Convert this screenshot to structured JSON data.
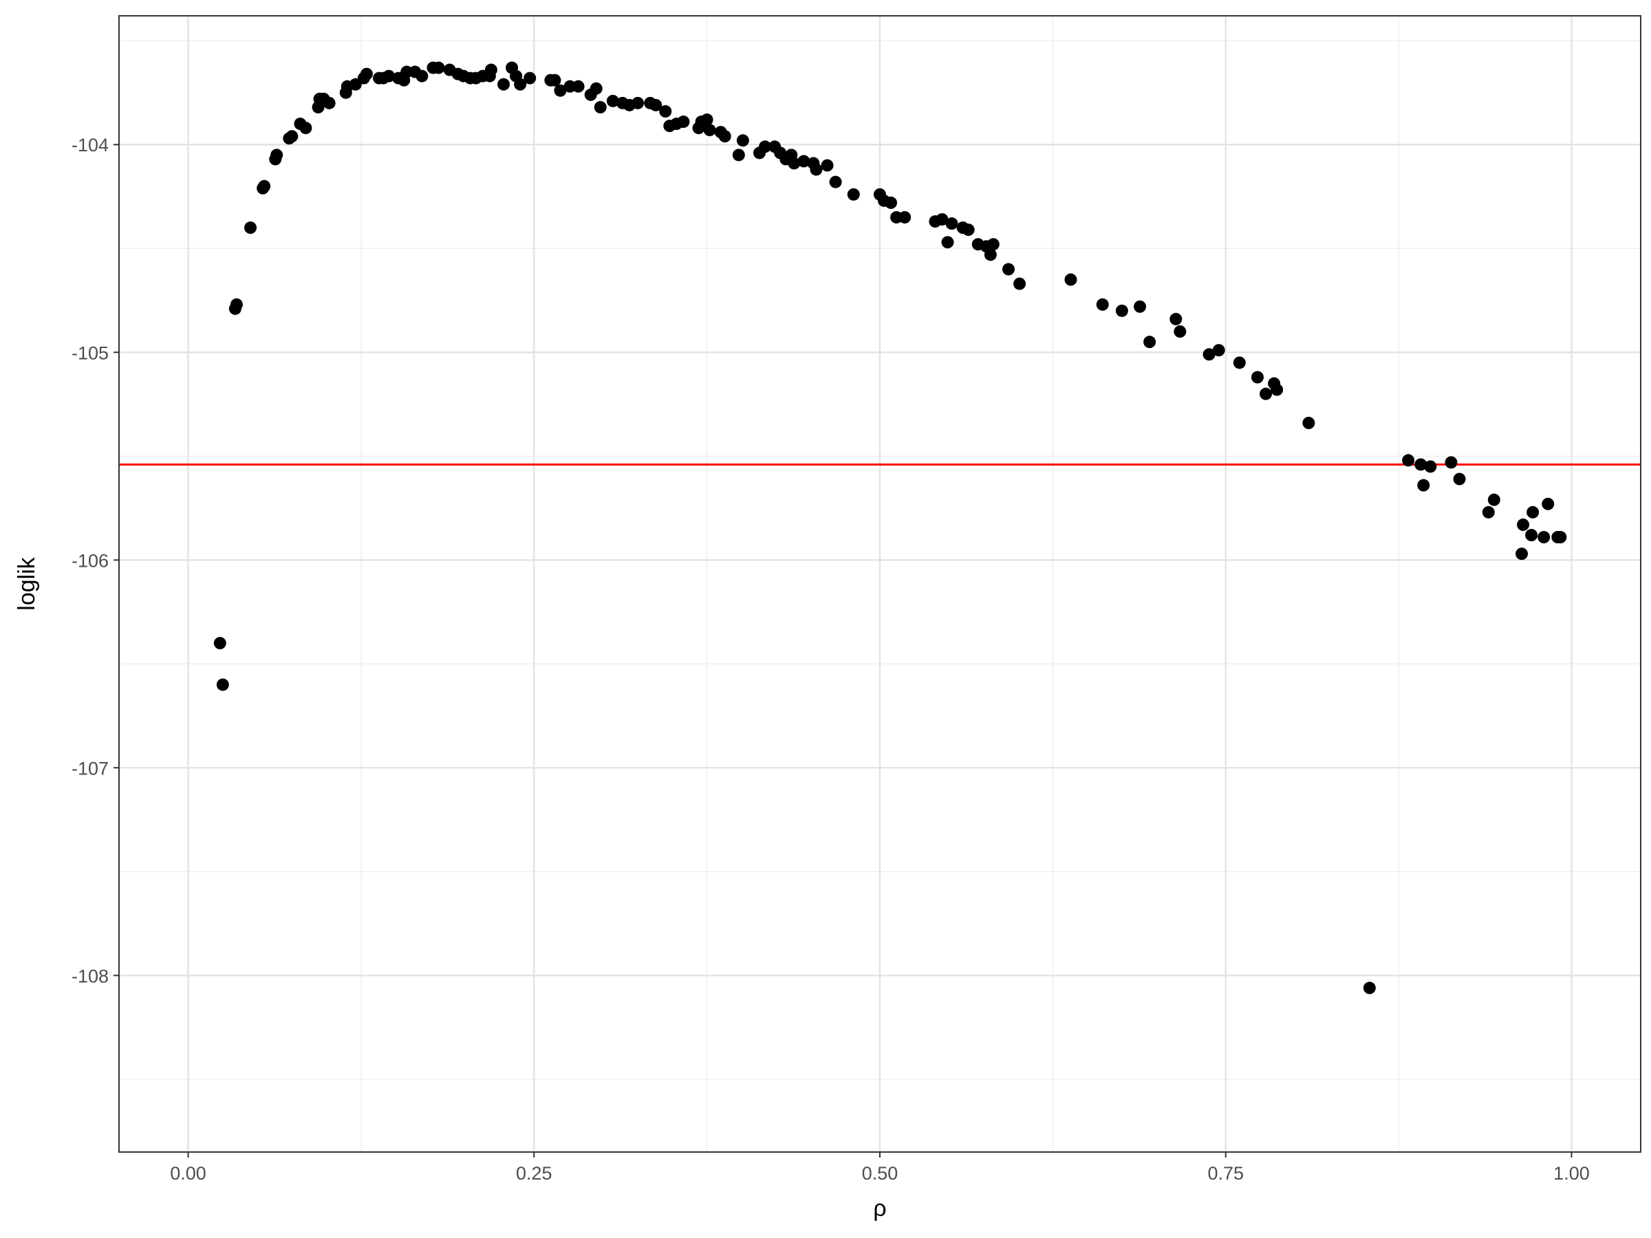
{
  "chart_data": {
    "type": "scatter",
    "title": "",
    "xlabel": "ρ",
    "ylabel": "loglik",
    "xlim": [
      -0.05,
      1.05
    ],
    "ylim": [
      -108.85,
      -103.38
    ],
    "x_ticks": [
      0.0,
      0.25,
      0.5,
      0.75,
      1.0
    ],
    "x_tick_labels": [
      "0.00",
      "0.25",
      "0.50",
      "0.75",
      "1.00"
    ],
    "y_ticks": [
      -104,
      -105,
      -106,
      -107,
      -108
    ],
    "y_tick_labels": [
      "-104",
      "-105",
      "-106",
      "-107",
      "-108"
    ],
    "grid": true,
    "hline": {
      "y": -105.54,
      "color": "#ff0000"
    },
    "point_color": "#000000",
    "series": [
      {
        "points": [
          [
            0.023,
            -106.4
          ],
          [
            0.025,
            -106.6
          ],
          [
            0.034,
            -104.79
          ],
          [
            0.035,
            -104.77
          ],
          [
            0.045,
            -104.4
          ],
          [
            0.054,
            -104.21
          ],
          [
            0.055,
            -104.2
          ],
          [
            0.063,
            -104.07
          ],
          [
            0.064,
            -104.05
          ],
          [
            0.073,
            -103.97
          ],
          [
            0.075,
            -103.96
          ],
          [
            0.081,
            -103.9
          ],
          [
            0.085,
            -103.92
          ],
          [
            0.094,
            -103.82
          ],
          [
            0.095,
            -103.78
          ],
          [
            0.098,
            -103.78
          ],
          [
            0.102,
            -103.8
          ],
          [
            0.114,
            -103.75
          ],
          [
            0.115,
            -103.72
          ],
          [
            0.121,
            -103.71
          ],
          [
            0.127,
            -103.68
          ],
          [
            0.129,
            -103.66
          ],
          [
            0.138,
            -103.68
          ],
          [
            0.141,
            -103.68
          ],
          [
            0.145,
            -103.67
          ],
          [
            0.152,
            -103.68
          ],
          [
            0.156,
            -103.69
          ],
          [
            0.158,
            -103.65
          ],
          [
            0.164,
            -103.65
          ],
          [
            0.169,
            -103.67
          ],
          [
            0.177,
            -103.63
          ],
          [
            0.181,
            -103.63
          ],
          [
            0.189,
            -103.64
          ],
          [
            0.195,
            -103.66
          ],
          [
            0.199,
            -103.67
          ],
          [
            0.204,
            -103.68
          ],
          [
            0.208,
            -103.68
          ],
          [
            0.213,
            -103.67
          ],
          [
            0.218,
            -103.67
          ],
          [
            0.219,
            -103.64
          ],
          [
            0.228,
            -103.71
          ],
          [
            0.234,
            -103.63
          ],
          [
            0.237,
            -103.67
          ],
          [
            0.24,
            -103.71
          ],
          [
            0.247,
            -103.68
          ],
          [
            0.262,
            -103.69
          ],
          [
            0.265,
            -103.69
          ],
          [
            0.269,
            -103.74
          ],
          [
            0.276,
            -103.72
          ],
          [
            0.282,
            -103.72
          ],
          [
            0.291,
            -103.76
          ],
          [
            0.295,
            -103.73
          ],
          [
            0.298,
            -103.82
          ],
          [
            0.307,
            -103.79
          ],
          [
            0.314,
            -103.8
          ],
          [
            0.319,
            -103.81
          ],
          [
            0.325,
            -103.8
          ],
          [
            0.334,
            -103.8
          ],
          [
            0.338,
            -103.81
          ],
          [
            0.345,
            -103.84
          ],
          [
            0.348,
            -103.91
          ],
          [
            0.353,
            -103.9
          ],
          [
            0.358,
            -103.89
          ],
          [
            0.369,
            -103.92
          ],
          [
            0.371,
            -103.89
          ],
          [
            0.375,
            -103.88
          ],
          [
            0.377,
            -103.93
          ],
          [
            0.385,
            -103.94
          ],
          [
            0.388,
            -103.96
          ],
          [
            0.398,
            -104.05
          ],
          [
            0.401,
            -103.98
          ],
          [
            0.413,
            -104.04
          ],
          [
            0.417,
            -104.01
          ],
          [
            0.424,
            -104.01
          ],
          [
            0.428,
            -104.04
          ],
          [
            0.432,
            -104.07
          ],
          [
            0.436,
            -104.05
          ],
          [
            0.438,
            -104.09
          ],
          [
            0.445,
            -104.08
          ],
          [
            0.452,
            -104.09
          ],
          [
            0.454,
            -104.12
          ],
          [
            0.462,
            -104.1
          ],
          [
            0.468,
            -104.18
          ],
          [
            0.481,
            -104.24
          ],
          [
            0.5,
            -104.24
          ],
          [
            0.503,
            -104.27
          ],
          [
            0.508,
            -104.28
          ],
          [
            0.512,
            -104.35
          ],
          [
            0.518,
            -104.35
          ],
          [
            0.54,
            -104.37
          ],
          [
            0.545,
            -104.36
          ],
          [
            0.549,
            -104.47
          ],
          [
            0.552,
            -104.38
          ],
          [
            0.56,
            -104.4
          ],
          [
            0.564,
            -104.41
          ],
          [
            0.571,
            -104.48
          ],
          [
            0.577,
            -104.49
          ],
          [
            0.58,
            -104.53
          ],
          [
            0.582,
            -104.48
          ],
          [
            0.593,
            -104.6
          ],
          [
            0.601,
            -104.67
          ],
          [
            0.638,
            -104.65
          ],
          [
            0.661,
            -104.77
          ],
          [
            0.675,
            -104.8
          ],
          [
            0.688,
            -104.78
          ],
          [
            0.695,
            -104.95
          ],
          [
            0.714,
            -104.84
          ],
          [
            0.717,
            -104.9
          ],
          [
            0.738,
            -105.01
          ],
          [
            0.745,
            -104.99
          ],
          [
            0.76,
            -105.05
          ],
          [
            0.773,
            -105.12
          ],
          [
            0.779,
            -105.2
          ],
          [
            0.785,
            -105.15
          ],
          [
            0.787,
            -105.18
          ],
          [
            0.81,
            -105.34
          ],
          [
            0.854,
            -108.06
          ],
          [
            0.882,
            -105.52
          ],
          [
            0.891,
            -105.54
          ],
          [
            0.893,
            -105.64
          ],
          [
            0.898,
            -105.55
          ],
          [
            0.913,
            -105.53
          ],
          [
            0.919,
            -105.61
          ],
          [
            0.94,
            -105.77
          ],
          [
            0.944,
            -105.71
          ],
          [
            0.964,
            -105.97
          ],
          [
            0.965,
            -105.83
          ],
          [
            0.971,
            -105.88
          ],
          [
            0.972,
            -105.77
          ],
          [
            0.98,
            -105.89
          ],
          [
            0.983,
            -105.73
          ],
          [
            0.99,
            -105.89
          ],
          [
            0.992,
            -105.89
          ]
        ]
      }
    ]
  }
}
